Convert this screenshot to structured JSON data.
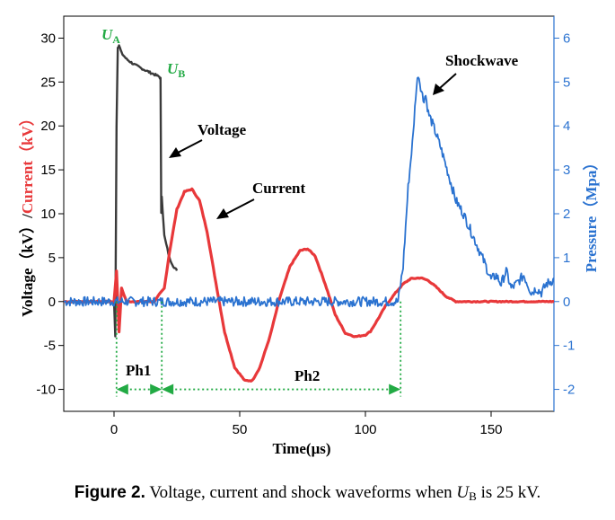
{
  "chart_data": {
    "type": "line",
    "xlabel": "Time(μs)",
    "ylabel_left_parts": [
      "Voltage（kV）/",
      "Current（kV）"
    ],
    "ylabel_right": "Pressure（Mpa）",
    "xlim": [
      -20,
      175
    ],
    "ylim_left": [
      -12.5,
      32.5
    ],
    "ylim_right": [
      -2.5,
      6.5
    ],
    "x_ticks": [
      0,
      50,
      100,
      150
    ],
    "y_ticks_left": [
      -10,
      -5,
      0,
      5,
      10,
      15,
      20,
      25,
      30
    ],
    "y_ticks_left_labels": [
      "-10",
      "-5",
      "0",
      "5",
      "10",
      "15",
      "20",
      "25",
      "30"
    ],
    "y_ticks_right": [
      -2,
      -1,
      0,
      1,
      2,
      3,
      4,
      5,
      6
    ],
    "y_ticks_right_labels": [
      "-2",
      "-1",
      "0",
      "1",
      "2",
      "3",
      "4",
      "5",
      "6"
    ],
    "colors": {
      "voltage": "#3a3a3a",
      "current": "#e8383a",
      "shockwave": "#2a72d0",
      "annotation": "#22aa44"
    },
    "series": [
      {
        "name": "Voltage",
        "axis": "left",
        "x": [
          -20,
          0,
          0.5,
          1.0,
          1.5,
          2,
          3,
          5,
          8,
          12,
          15,
          18,
          18.5,
          18.8,
          19,
          20,
          22,
          24,
          25
        ],
        "y": [
          0,
          0,
          -4.0,
          20,
          29.0,
          29.2,
          28.3,
          27.6,
          27.0,
          26.4,
          26.0,
          25.6,
          25.4,
          10,
          12,
          7.5,
          5.0,
          3.8,
          3.6
        ]
      },
      {
        "name": "Current",
        "axis": "left",
        "x": [
          -20,
          0,
          1,
          2,
          3,
          5,
          16,
          18,
          20,
          22,
          25,
          28,
          31,
          34,
          37,
          40,
          44,
          48,
          52,
          55,
          58,
          62,
          66,
          70,
          74,
          77,
          80,
          84,
          88,
          92,
          96,
          100,
          102,
          105,
          108,
          112,
          115,
          118,
          122,
          125,
          128,
          132,
          136,
          140,
          175
        ],
        "y": [
          0,
          0,
          3.5,
          -3.5,
          1.5,
          0,
          0,
          0.8,
          1.5,
          5.5,
          10.5,
          12.5,
          12.8,
          11.5,
          8.0,
          3.0,
          -3.5,
          -7.5,
          -9.0,
          -9.0,
          -7.5,
          -4.0,
          0.5,
          4.0,
          5.8,
          6.0,
          5.2,
          2.0,
          -1.5,
          -3.6,
          -4.0,
          -3.8,
          -3.4,
          -2.0,
          -0.5,
          1.0,
          2.0,
          2.6,
          2.7,
          2.4,
          1.7,
          0.6,
          0,
          0,
          0
        ]
      },
      {
        "name": "Shockwave",
        "axis": "right",
        "x": [
          -20,
          113,
          115,
          117,
          119,
          120,
          121,
          122,
          123,
          124,
          125,
          127,
          130,
          133,
          136,
          139,
          142,
          145,
          148,
          150,
          152,
          154,
          156,
          158,
          160,
          163,
          166,
          168,
          170,
          172,
          175
        ],
        "y": [
          0,
          0,
          0.8,
          2.6,
          3.8,
          4.7,
          5.2,
          4.9,
          4.6,
          4.7,
          4.3,
          4.0,
          3.5,
          2.9,
          2.3,
          2.0,
          1.6,
          1.2,
          0.8,
          0.5,
          0.6,
          0.4,
          0.7,
          0.3,
          0.4,
          0.6,
          0.2,
          0.3,
          0.2,
          0.4,
          0.5
        ]
      }
    ],
    "annotations": {
      "ua": {
        "letter": "U",
        "sub": "A"
      },
      "ub": {
        "letter": "U",
        "sub": "B"
      },
      "voltage": "Voltage",
      "current": "Current",
      "shockwave": "Shockwave",
      "ph1": "Ph1",
      "ph2": "Ph2"
    },
    "phase_markers": [
      1,
      19,
      114
    ]
  },
  "caption": {
    "label": "Figure 2.",
    "text_before": "Voltage, current and shock waveforms when ",
    "var": "U",
    "var_sub": "B",
    "text_after": " is 25 kV."
  }
}
